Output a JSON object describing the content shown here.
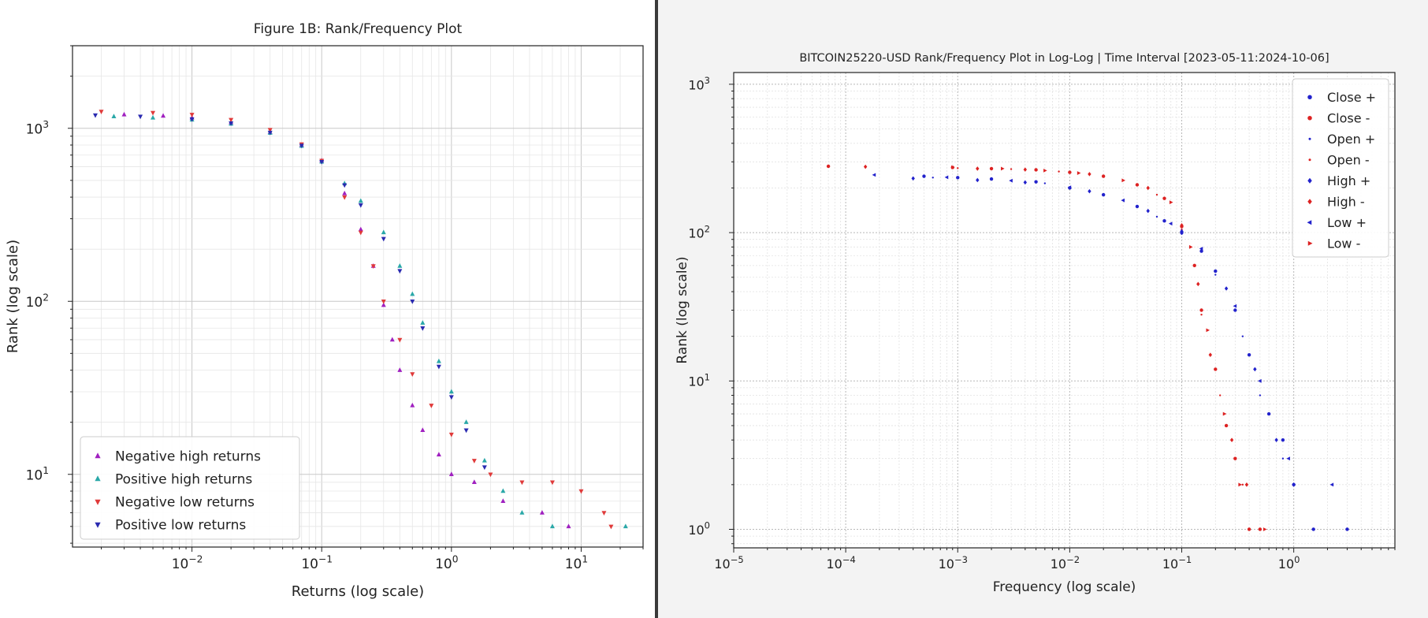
{
  "chart_data": [
    {
      "type": "scatter",
      "title": "Figure 1B: Rank/Frequency Plot",
      "xlabel": "Returns (log scale)",
      "ylabel": "Rank (log scale)",
      "x_scale": "log",
      "y_scale": "log",
      "xlim": [
        0.0012,
        30
      ],
      "ylim": [
        3.8,
        3000
      ],
      "x_ticks": [
        {
          "value": 0.01,
          "base": "10",
          "exp": "−2"
        },
        {
          "value": 0.1,
          "base": "10",
          "exp": "−1"
        },
        {
          "value": 1,
          "base": "10",
          "exp": "0"
        },
        {
          "value": 10,
          "base": "10",
          "exp": "1"
        }
      ],
      "y_ticks": [
        {
          "value": 10,
          "base": "10",
          "exp": "1"
        },
        {
          "value": 100,
          "base": "10",
          "exp": "2"
        },
        {
          "value": 1000,
          "base": "10",
          "exp": "3"
        }
      ],
      "grid": true,
      "legend_position": "lower-left",
      "series": [
        {
          "name": "Negative high returns",
          "marker": "triangle-up",
          "color": "#a020c0",
          "points": [
            [
              0.003,
              1200
            ],
            [
              0.006,
              1180
            ],
            [
              0.01,
              1150
            ],
            [
              0.02,
              1080
            ],
            [
              0.04,
              950
            ],
            [
              0.07,
              800
            ],
            [
              0.1,
              650
            ],
            [
              0.15,
              420
            ],
            [
              0.2,
              260
            ],
            [
              0.25,
              160
            ],
            [
              0.3,
              95
            ],
            [
              0.35,
              60
            ],
            [
              0.4,
              40
            ],
            [
              0.5,
              25
            ],
            [
              0.6,
              18
            ],
            [
              0.8,
              13
            ],
            [
              1.0,
              10
            ],
            [
              1.5,
              9
            ],
            [
              2.5,
              7
            ],
            [
              5,
              6
            ],
            [
              8,
              5
            ]
          ]
        },
        {
          "name": "Positive high returns",
          "marker": "triangle-up",
          "color": "#2aa8a8",
          "points": [
            [
              0.0025,
              1170
            ],
            [
              0.005,
              1150
            ],
            [
              0.01,
              1120
            ],
            [
              0.02,
              1060
            ],
            [
              0.04,
              940
            ],
            [
              0.07,
              790
            ],
            [
              0.1,
              640
            ],
            [
              0.15,
              480
            ],
            [
              0.2,
              380
            ],
            [
              0.3,
              250
            ],
            [
              0.4,
              160
            ],
            [
              0.5,
              110
            ],
            [
              0.6,
              75
            ],
            [
              0.8,
              45
            ],
            [
              1.0,
              30
            ],
            [
              1.3,
              20
            ],
            [
              1.8,
              12
            ],
            [
              2.5,
              8
            ],
            [
              3.5,
              6
            ],
            [
              6,
              5
            ],
            [
              22,
              5
            ]
          ]
        },
        {
          "name": "Negative low returns",
          "marker": "triangle-down",
          "color": "#e03a3a",
          "points": [
            [
              0.002,
              1250
            ],
            [
              0.005,
              1230
            ],
            [
              0.01,
              1200
            ],
            [
              0.02,
              1120
            ],
            [
              0.04,
              980
            ],
            [
              0.07,
              810
            ],
            [
              0.1,
              650
            ],
            [
              0.15,
              400
            ],
            [
              0.2,
              250
            ],
            [
              0.25,
              160
            ],
            [
              0.3,
              100
            ],
            [
              0.4,
              60
            ],
            [
              0.5,
              38
            ],
            [
              0.7,
              25
            ],
            [
              1.0,
              17
            ],
            [
              1.5,
              12
            ],
            [
              2.0,
              10
            ],
            [
              3.5,
              9
            ],
            [
              6,
              9
            ],
            [
              10,
              8
            ],
            [
              15,
              6
            ],
            [
              17,
              5
            ]
          ]
        },
        {
          "name": "Positive low returns",
          "marker": "triangle-down",
          "color": "#2a2ab0",
          "points": [
            [
              0.0018,
              1190
            ],
            [
              0.004,
              1170
            ],
            [
              0.01,
              1130
            ],
            [
              0.02,
              1070
            ],
            [
              0.04,
              945
            ],
            [
              0.07,
              795
            ],
            [
              0.1,
              640
            ],
            [
              0.15,
              470
            ],
            [
              0.2,
              360
            ],
            [
              0.3,
              230
            ],
            [
              0.4,
              150
            ],
            [
              0.5,
              100
            ],
            [
              0.6,
              70
            ],
            [
              0.8,
              42
            ],
            [
              1.0,
              28
            ],
            [
              1.3,
              18
            ],
            [
              1.8,
              11
            ]
          ]
        }
      ]
    },
    {
      "type": "scatter",
      "title": "BITCOIN25220-USD Rank/Frequency Plot in Log-Log | Time Interval [2023-05-11:2024-10-06]",
      "xlabel": "Frequency (log scale)",
      "ylabel": "Rank (log scale)",
      "x_scale": "log",
      "y_scale": "log",
      "xlim": [
        1e-05,
        8
      ],
      "ylim": [
        0.75,
        1200
      ],
      "x_ticks": [
        {
          "value": 1e-05,
          "base": "10",
          "exp": "−5"
        },
        {
          "value": 0.0001,
          "base": "10",
          "exp": "−4"
        },
        {
          "value": 0.001,
          "base": "10",
          "exp": "−3"
        },
        {
          "value": 0.01,
          "base": "10",
          "exp": "−2"
        },
        {
          "value": 0.1,
          "base": "10",
          "exp": "−1"
        },
        {
          "value": 1,
          "base": "10",
          "exp": "0"
        }
      ],
      "y_ticks": [
        {
          "value": 1,
          "base": "10",
          "exp": "0"
        },
        {
          "value": 10,
          "base": "10",
          "exp": "1"
        },
        {
          "value": 100,
          "base": "10",
          "exp": "2"
        },
        {
          "value": 1000,
          "base": "10",
          "exp": "3"
        }
      ],
      "grid": true,
      "legend_position": "top-right",
      "series": [
        {
          "name": "Close +",
          "marker": "circle",
          "color": "#2222cc",
          "points": [
            [
              0.0005,
              240
            ],
            [
              0.001,
              235
            ],
            [
              0.002,
              230
            ],
            [
              0.005,
              220
            ],
            [
              0.01,
              200
            ],
            [
              0.02,
              180
            ],
            [
              0.04,
              150
            ],
            [
              0.07,
              120
            ],
            [
              0.1,
              100
            ],
            [
              0.15,
              75
            ],
            [
              0.2,
              55
            ],
            [
              0.3,
              30
            ],
            [
              0.4,
              15
            ],
            [
              0.6,
              6
            ],
            [
              0.8,
              4
            ],
            [
              1.0,
              2
            ],
            [
              1.5,
              1
            ],
            [
              3,
              1
            ]
          ]
        },
        {
          "name": "Close -",
          "marker": "circle",
          "color": "#dd2222",
          "points": [
            [
              7e-05,
              280
            ],
            [
              0.0009,
              275
            ],
            [
              0.002,
              270
            ],
            [
              0.005,
              265
            ],
            [
              0.01,
              255
            ],
            [
              0.02,
              240
            ],
            [
              0.04,
              210
            ],
            [
              0.07,
              170
            ],
            [
              0.1,
              110
            ],
            [
              0.13,
              60
            ],
            [
              0.15,
              30
            ],
            [
              0.2,
              12
            ],
            [
              0.25,
              5
            ],
            [
              0.3,
              3
            ],
            [
              0.4,
              1
            ],
            [
              0.5,
              1
            ]
          ]
        },
        {
          "name": "Open +",
          "marker": "point",
          "color": "#2222cc",
          "points": [
            [
              0.0006,
              235
            ],
            [
              0.002,
              228
            ],
            [
              0.006,
              215
            ],
            [
              0.02,
              178
            ],
            [
              0.06,
              128
            ],
            [
              0.1,
              98
            ],
            [
              0.2,
              52
            ],
            [
              0.35,
              20
            ],
            [
              0.5,
              8
            ],
            [
              0.8,
              3
            ]
          ]
        },
        {
          "name": "Open -",
          "marker": "point",
          "color": "#dd2222",
          "points": [
            [
              0.001,
              272
            ],
            [
              0.003,
              268
            ],
            [
              0.008,
              258
            ],
            [
              0.02,
              238
            ],
            [
              0.06,
              180
            ],
            [
              0.1,
              105
            ],
            [
              0.15,
              28
            ],
            [
              0.22,
              8
            ],
            [
              0.35,
              2
            ]
          ]
        },
        {
          "name": "High +",
          "marker": "diamond",
          "color": "#2222cc",
          "points": [
            [
              0.0004,
              232
            ],
            [
              0.0015,
              226
            ],
            [
              0.004,
              218
            ],
            [
              0.015,
              190
            ],
            [
              0.05,
              140
            ],
            [
              0.1,
              102
            ],
            [
              0.25,
              42
            ],
            [
              0.45,
              12
            ],
            [
              0.7,
              4
            ],
            [
              1.0,
              2
            ]
          ]
        },
        {
          "name": "High -",
          "marker": "diamond",
          "color": "#dd2222",
          "points": [
            [
              0.00015,
              278
            ],
            [
              0.0015,
              270
            ],
            [
              0.004,
              266
            ],
            [
              0.015,
              248
            ],
            [
              0.05,
              200
            ],
            [
              0.1,
              112
            ],
            [
              0.14,
              45
            ],
            [
              0.18,
              15
            ],
            [
              0.28,
              4
            ],
            [
              0.38,
              2
            ]
          ]
        },
        {
          "name": "Low +",
          "marker": "triangle-left",
          "color": "#2222cc",
          "points": [
            [
              0.00018,
              245
            ],
            [
              0.0008,
              236
            ],
            [
              0.003,
              224
            ],
            [
              0.01,
              202
            ],
            [
              0.03,
              165
            ],
            [
              0.08,
              115
            ],
            [
              0.15,
              78
            ],
            [
              0.3,
              32
            ],
            [
              0.5,
              10
            ],
            [
              0.9,
              3
            ],
            [
              2.2,
              2
            ]
          ]
        },
        {
          "name": "Low -",
          "marker": "triangle-right",
          "color": "#dd2222",
          "points": [
            [
              0.0009,
              276
            ],
            [
              0.0025,
              270
            ],
            [
              0.006,
              262
            ],
            [
              0.012,
              252
            ],
            [
              0.03,
              225
            ],
            [
              0.08,
              160
            ],
            [
              0.12,
              80
            ],
            [
              0.17,
              22
            ],
            [
              0.24,
              6
            ],
            [
              0.33,
              2
            ],
            [
              0.55,
              1
            ]
          ]
        }
      ]
    }
  ]
}
